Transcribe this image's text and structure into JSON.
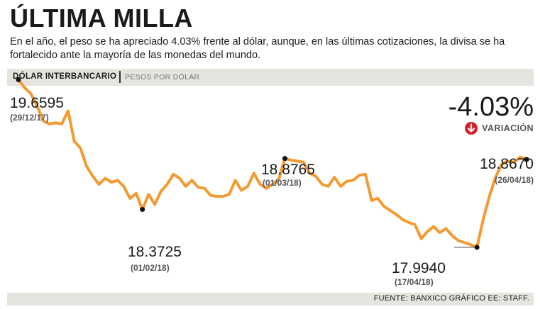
{
  "header": {
    "title": "ÚLTIMA MILLA",
    "subtitle": "En el año, el peso se ha apreciado 4.03% frente al dólar, aunque, en las últimas cotizaciones, la divisa se ha fortalecido ante la mayoría de las monedas del mundo."
  },
  "band": {
    "main": "DÓLAR INTERBANCARIO",
    "unit": "PESOS POR DÓLAR"
  },
  "variation": {
    "value": "-4.03%",
    "label": "VARIACIÓN",
    "icon": "down-arrow-icon",
    "icon_color": "#d32027"
  },
  "footer": {
    "source": "FUENTE: BANXICO GRÁFICO EE: STAFF."
  },
  "chart_data": {
    "type": "line",
    "line_color": "#f39a32",
    "ylim": [
      17.8,
      19.8
    ],
    "grid": false,
    "values": [
      19.6595,
      19.58,
      19.52,
      19.4,
      19.25,
      19.22,
      19.23,
      19.22,
      19.35,
      19.05,
      18.98,
      18.8,
      18.7,
      18.62,
      18.68,
      18.64,
      18.66,
      18.6,
      18.48,
      18.53,
      18.37,
      18.52,
      18.42,
      18.55,
      18.62,
      18.72,
      18.68,
      18.6,
      18.66,
      18.59,
      18.58,
      18.51,
      18.5,
      18.5,
      18.52,
      18.66,
      18.56,
      18.6,
      18.73,
      18.62,
      18.58,
      18.62,
      18.67,
      18.8765,
      18.86,
      18.85,
      18.84,
      18.73,
      18.7,
      18.62,
      18.6,
      18.69,
      18.6,
      18.65,
      18.66,
      18.71,
      18.72,
      18.46,
      18.48,
      18.4,
      18.36,
      18.32,
      18.27,
      18.24,
      18.22,
      18.08,
      18.15,
      18.2,
      18.14,
      18.18,
      18.11,
      18.06,
      18.04,
      18.02,
      17.994,
      18.27,
      18.5,
      18.69,
      18.82,
      18.85,
      18.84,
      18.89,
      18.867
    ],
    "highlights": [
      {
        "index": 0,
        "value": "19.6595",
        "date": "(29/12/17)"
      },
      {
        "index": 20,
        "value": "18.3725",
        "date": "(01/02/18)"
      },
      {
        "index": 43,
        "value": "18.8765",
        "date": "(01/03/18)"
      },
      {
        "index": 74,
        "value": "17.9940",
        "date": "(17/04/18)"
      },
      {
        "index": 82,
        "value": "18.8670",
        "date": "(26/04/18)"
      }
    ]
  }
}
